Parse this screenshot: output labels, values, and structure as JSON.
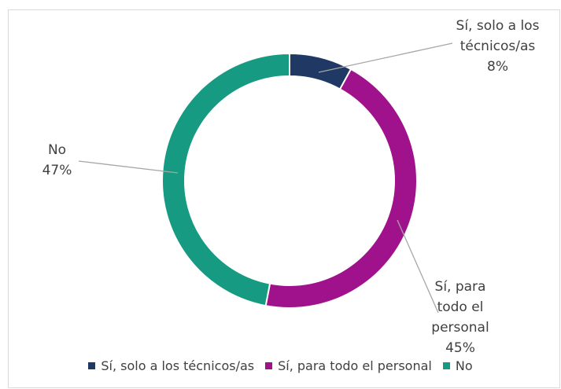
{
  "chart_data": {
    "type": "donut",
    "categories": [
      "Sí, solo a los técnicos/as",
      "Sí, para todo el personal",
      "No"
    ],
    "values": [
      8,
      45,
      47
    ],
    "value_labels": [
      "8%",
      "45%",
      "47%"
    ],
    "colors": [
      "#1f3864",
      "#a0128c",
      "#169b82"
    ],
    "legend": "bottom"
  }
}
